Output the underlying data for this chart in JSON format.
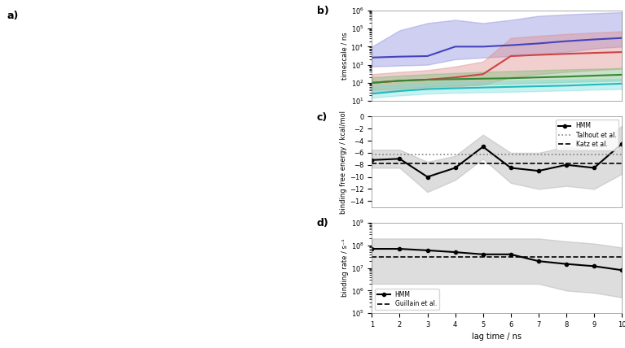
{
  "panel_b": {
    "lag_times": [
      1,
      2,
      3,
      4,
      5,
      6,
      7,
      8,
      9,
      10
    ],
    "blue_line": [
      2500,
      2800,
      3000,
      10000,
      10000,
      12000,
      15000,
      20000,
      25000,
      30000
    ],
    "blue_lo": [
      800,
      900,
      1000,
      2000,
      2500,
      3000,
      4000,
      5000,
      8000,
      10000
    ],
    "blue_hi": [
      10000,
      80000,
      200000,
      300000,
      200000,
      300000,
      500000,
      600000,
      700000,
      800000
    ],
    "red_line": [
      100,
      130,
      150,
      200,
      300,
      3000,
      3500,
      4000,
      4500,
      5000
    ],
    "red_lo": [
      30,
      40,
      50,
      60,
      80,
      200,
      300,
      400,
      500,
      600
    ],
    "red_hi": [
      300,
      400,
      500,
      800,
      1500,
      30000,
      40000,
      50000,
      60000,
      70000
    ],
    "green_line": [
      100,
      130,
      150,
      160,
      170,
      180,
      200,
      220,
      250,
      280
    ],
    "green_lo": [
      40,
      50,
      60,
      70,
      80,
      90,
      100,
      110,
      120,
      130
    ],
    "green_hi": [
      200,
      250,
      300,
      350,
      400,
      450,
      500,
      550,
      600,
      650
    ],
    "cyan_line": [
      25,
      35,
      45,
      50,
      55,
      60,
      65,
      70,
      80,
      90
    ],
    "cyan_lo": [
      15,
      20,
      25,
      28,
      30,
      32,
      35,
      38,
      42,
      45
    ],
    "cyan_hi": [
      60,
      80,
      100,
      110,
      120,
      130,
      140,
      150,
      160,
      170
    ],
    "ylabel": "timescale / ns",
    "ylim": [
      10,
      1000000
    ],
    "label": "b)"
  },
  "panel_c": {
    "lag_times": [
      1,
      2,
      3,
      4,
      5,
      6,
      7,
      8,
      9,
      10
    ],
    "hmm_line": [
      -7.2,
      -7.0,
      -10.0,
      -8.5,
      -5.0,
      -8.5,
      -9.0,
      -8.0,
      -8.5,
      -4.5
    ],
    "hmm_lo": [
      -8.5,
      -8.5,
      -12.5,
      -10.5,
      -7.0,
      -11.0,
      -12.0,
      -11.5,
      -12.0,
      -9.5
    ],
    "hmm_hi": [
      -5.5,
      -5.5,
      -7.5,
      -6.5,
      -3.0,
      -6.0,
      -6.0,
      -5.0,
      -5.5,
      -1.5
    ],
    "talhout_val": -6.3,
    "katz_val": -7.7,
    "ylabel": "binding free energy / kcal/mol",
    "ylim": [
      -15,
      0
    ],
    "yticks": [
      0,
      -2,
      -4,
      -6,
      -8,
      -10,
      -12,
      -14
    ],
    "label": "c)"
  },
  "panel_d": {
    "lag_times": [
      1,
      2,
      3,
      4,
      5,
      6,
      7,
      8,
      9,
      10
    ],
    "hmm_line": [
      70000000.0,
      70000000.0,
      60000000.0,
      50000000.0,
      40000000.0,
      40000000.0,
      20000000.0,
      15000000.0,
      12000000.0,
      8000000.0
    ],
    "hmm_lo": [
      2000000.0,
      2000000.0,
      2000000.0,
      2000000.0,
      2000000.0,
      2000000.0,
      2000000.0,
      1000000.0,
      800000.0,
      500000.0
    ],
    "hmm_hi": [
      200000000.0,
      200000000.0,
      200000000.0,
      200000000.0,
      200000000.0,
      200000000.0,
      200000000.0,
      150000000.0,
      120000000.0,
      80000000.0
    ],
    "guillain_val": 30000000.0,
    "ylabel": "binding rate / s⁻¹",
    "ylim": [
      100000.0,
      1000000000.0
    ],
    "label": "d)"
  },
  "colors": {
    "blue": "#4444bb",
    "red": "#cc4444",
    "green": "#338833",
    "cyan": "#22bbbb",
    "black": "#222222",
    "gray_fill": "#aaaaaa",
    "blue_fill": "#8888dd",
    "red_fill": "#dd8888",
    "green_fill": "#77bb77",
    "cyan_fill": "#77dddd"
  }
}
